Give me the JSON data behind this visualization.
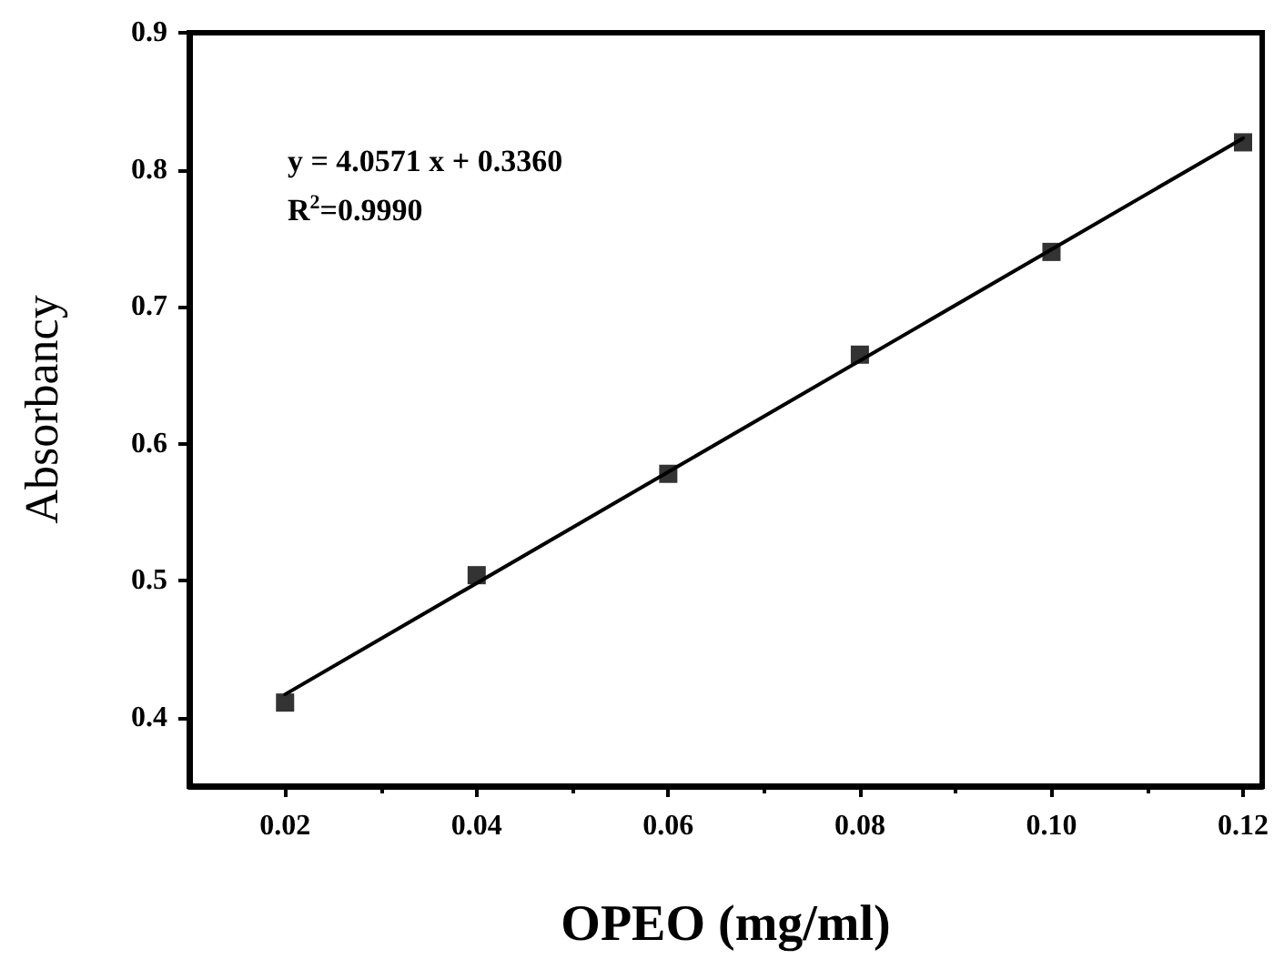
{
  "chart_data": {
    "type": "scatter",
    "xlabel": "OPEO (mg/ml)",
    "ylabel": "Absorbancy",
    "x": [
      0.02,
      0.04,
      0.06,
      0.08,
      0.1,
      0.12
    ],
    "series": [
      {
        "color": "#000000",
        "marker": "square",
        "values": [
          0.411,
          0.504,
          0.578,
          0.665,
          0.74,
          0.82
        ]
      },
      {
        "type": "line",
        "color": "#000000",
        "marker": "none",
        "line_style": "solid",
        "x": [
          0.02,
          0.12
        ],
        "values": [
          0.417,
          0.823
        ]
      }
    ],
    "annotations": [
      "y = 4.0571 x + 0.3360",
      "R$^{2}$=0.9990"
    ],
    "xlim": [
      0.01,
      0.122
    ],
    "xticks": [
      0.02,
      0.04,
      0.06,
      0.08,
      {
        "value": 0.1,
        "label": "0.10"
      },
      0.12
    ],
    "ylim": [
      0.35,
      0.9
    ],
    "yticks": [
      0.4,
      0.5,
      0.6,
      0.7,
      0.8,
      0.9
    ],
    "grid": false
  }
}
